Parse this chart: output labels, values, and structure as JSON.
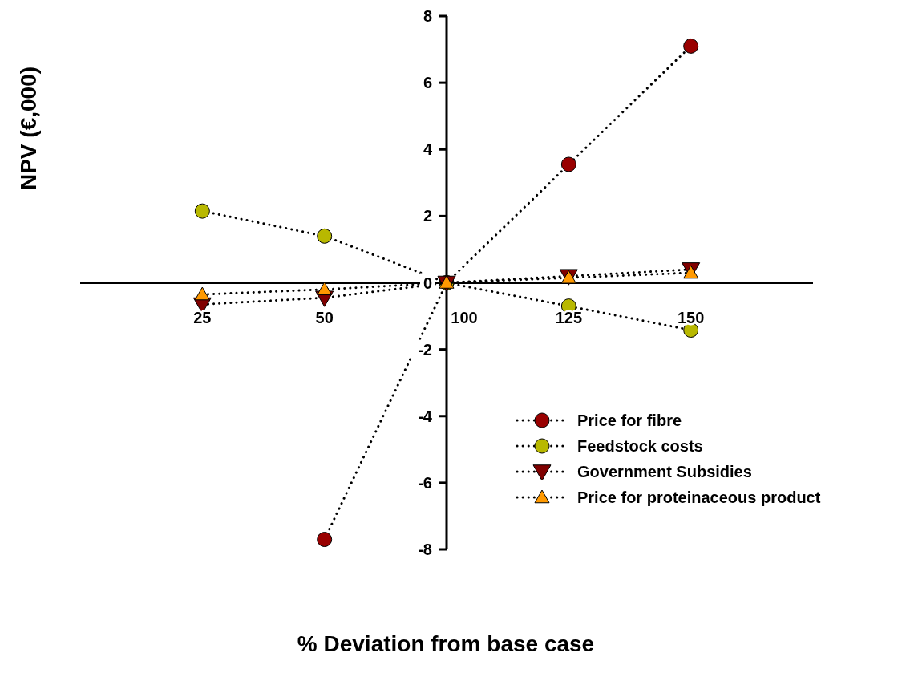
{
  "chart_data": {
    "type": "line",
    "xlabel": "% Deviation from base case",
    "ylabel": "NPV (€,000)",
    "categories": [
      "25",
      "50",
      "100",
      "125",
      "150"
    ],
    "ylim": [
      -8,
      8
    ],
    "yticks": [
      -8,
      -6,
      -4,
      -2,
      0,
      2,
      4,
      6,
      8
    ],
    "legend": "bottom right",
    "line_style": "dotted",
    "grid": false,
    "series": [
      {
        "name": "Price for fibre",
        "color": "#990000",
        "marker": "circle",
        "values": [
          null,
          -7.7,
          0,
          3.55,
          7.1
        ]
      },
      {
        "name": "Feedstock costs",
        "color": "#b8b800",
        "marker": "circle",
        "values": [
          2.15,
          1.4,
          0,
          -0.7,
          -1.42
        ]
      },
      {
        "name": "Government Subsidies",
        "color": "#800000",
        "marker": "triangle-down",
        "values": [
          -0.65,
          -0.45,
          0,
          0.2,
          0.4
        ]
      },
      {
        "name": "Price for proteinaceous product",
        "color": "#ff9900",
        "marker": "triangle",
        "values": [
          -0.35,
          -0.2,
          0,
          0.15,
          0.3
        ]
      }
    ]
  }
}
